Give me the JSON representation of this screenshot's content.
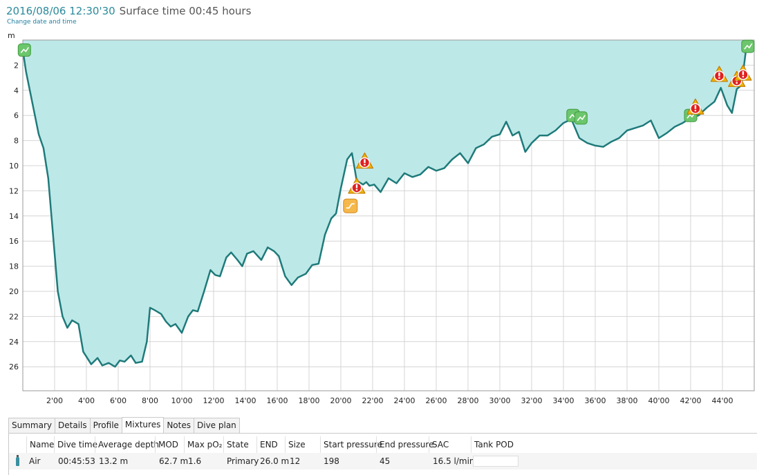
{
  "header": {
    "datetime": "2016/08/06 12:30'30",
    "surface_time": "Surface time 00:45 hours",
    "change_link": "Change date and time"
  },
  "colors": {
    "accent": "#2b8a9b",
    "profile_fill": "#bde8e8",
    "profile_line": "#1f7a7a",
    "warning": "#f0b400",
    "ok_marker": "#5cc05c"
  },
  "chart_data": {
    "type": "area",
    "ylabel": "m",
    "xlim": [
      0,
      46
    ],
    "ylim": [
      0,
      27
    ],
    "y_inverted": true,
    "grid": true,
    "x_ticks": [
      "2'00",
      "4'00",
      "6'00",
      "8'00",
      "10'00",
      "12'00",
      "14'00",
      "16'00",
      "18'00",
      "20'00",
      "22'00",
      "24'00",
      "26'00",
      "28'00",
      "30'00",
      "32'00",
      "34'00",
      "36'00",
      "38'00",
      "40'00",
      "42'00",
      "44'00"
    ],
    "y_ticks": [
      "2",
      "4",
      "6",
      "8",
      "10",
      "12",
      "14",
      "16",
      "18",
      "20",
      "22",
      "24",
      "26"
    ],
    "x": [
      0,
      0.2,
      0.6,
      1.0,
      1.3,
      1.6,
      1.8,
      2.0,
      2.2,
      2.5,
      2.8,
      3.1,
      3.5,
      3.8,
      4.0,
      4.3,
      4.7,
      5.0,
      5.4,
      5.8,
      6.1,
      6.4,
      6.8,
      7.1,
      7.5,
      7.8,
      8.0,
      8.3,
      8.7,
      9.0,
      9.3,
      9.6,
      10.0,
      10.4,
      10.7,
      11.0,
      11.4,
      11.8,
      12.1,
      12.4,
      12.8,
      13.1,
      13.5,
      13.8,
      14.1,
      14.5,
      15.0,
      15.4,
      15.8,
      16.1,
      16.5,
      16.9,
      17.3,
      17.8,
      18.2,
      18.6,
      19.0,
      19.4,
      19.7,
      20.0,
      20.4,
      20.7,
      21.0,
      21.4,
      21.6,
      21.8,
      22.1,
      22.5,
      23.0,
      23.5,
      24.0,
      24.5,
      25.0,
      25.5,
      26.0,
      26.5,
      27.0,
      27.5,
      28.0,
      28.5,
      29.0,
      29.5,
      30.0,
      30.4,
      30.8,
      31.2,
      31.6,
      32.0,
      32.5,
      33.0,
      33.5,
      34.0,
      34.5,
      35.0,
      35.5,
      36.0,
      36.5,
      37.0,
      37.5,
      38.0,
      38.5,
      39.0,
      39.5,
      40.0,
      40.5,
      41.0,
      41.5,
      42.0,
      42.5,
      43.0,
      43.5,
      43.9,
      44.3,
      44.6,
      44.9,
      45.2,
      45.5
    ],
    "values": [
      0.8,
      2.5,
      5.0,
      7.5,
      8.6,
      11.0,
      14.0,
      17.0,
      20.0,
      22.0,
      22.9,
      22.3,
      22.6,
      24.8,
      25.2,
      25.8,
      25.3,
      25.9,
      25.7,
      26.0,
      25.5,
      25.6,
      25.1,
      25.7,
      25.6,
      24.0,
      21.3,
      21.5,
      21.8,
      22.4,
      22.8,
      22.6,
      23.3,
      22.0,
      21.5,
      21.6,
      20.0,
      18.3,
      18.7,
      18.8,
      17.3,
      16.9,
      17.5,
      18.0,
      17.0,
      16.8,
      17.5,
      16.5,
      16.8,
      17.2,
      18.8,
      19.5,
      18.9,
      18.6,
      17.9,
      17.8,
      15.5,
      14.2,
      13.8,
      11.8,
      9.5,
      9.0,
      11.2,
      11.5,
      11.3,
      11.6,
      11.5,
      12.1,
      11.0,
      11.4,
      10.6,
      10.9,
      10.7,
      10.1,
      10.4,
      10.2,
      9.5,
      9.0,
      9.8,
      8.6,
      8.3,
      7.7,
      7.5,
      6.5,
      7.6,
      7.3,
      8.9,
      8.2,
      7.6,
      7.6,
      7.2,
      6.6,
      6.3,
      7.8,
      8.2,
      8.4,
      8.5,
      8.1,
      7.8,
      7.2,
      7.0,
      6.8,
      6.4,
      7.8,
      7.4,
      6.9,
      6.6,
      6.2,
      6.0,
      5.4,
      4.9,
      3.8,
      5.2,
      5.8,
      3.9,
      3.6,
      0.6
    ],
    "markers": [
      {
        "x": 0.1,
        "y": 0.8,
        "kind": "start"
      },
      {
        "x": 20.6,
        "y": 13.2,
        "kind": "gas-event"
      },
      {
        "x": 21.0,
        "y": 11.7,
        "kind": "warning"
      },
      {
        "x": 21.5,
        "y": 9.7,
        "kind": "warning"
      },
      {
        "x": 34.6,
        "y": 6.0,
        "kind": "ok"
      },
      {
        "x": 35.1,
        "y": 6.2,
        "kind": "ok"
      },
      {
        "x": 42.0,
        "y": 6.0,
        "kind": "ok"
      },
      {
        "x": 42.3,
        "y": 5.4,
        "kind": "warning"
      },
      {
        "x": 43.8,
        "y": 2.8,
        "kind": "warning"
      },
      {
        "x": 44.9,
        "y": 3.2,
        "kind": "warning"
      },
      {
        "x": 45.3,
        "y": 2.7,
        "kind": "warning"
      },
      {
        "x": 45.6,
        "y": 0.5,
        "kind": "ok-end"
      }
    ]
  },
  "tabs": [
    {
      "id": "summary",
      "label": "Summary",
      "active": false
    },
    {
      "id": "details",
      "label": "Details",
      "active": false
    },
    {
      "id": "profile",
      "label": "Profile",
      "active": false
    },
    {
      "id": "mixtures",
      "label": "Mixtures",
      "active": true
    },
    {
      "id": "notes",
      "label": "Notes",
      "active": false
    },
    {
      "id": "dive-plan",
      "label": "Dive plan",
      "active": false
    }
  ],
  "mixtures": {
    "columns": [
      "Name",
      "Dive time",
      "Average depth",
      "MOD",
      "Max pO₂",
      "State",
      "END",
      "Size",
      "Start pressure",
      "End pressure",
      "SAC",
      "Tank POD"
    ],
    "rows": [
      {
        "icon": "tank-icon",
        "cells": [
          "Air",
          "00:45:53",
          "13.2 m",
          "62.7 m",
          "1.6",
          "Primary",
          "26.0 m",
          "12",
          "198",
          "45",
          "16.5 l/min",
          ""
        ]
      }
    ]
  }
}
